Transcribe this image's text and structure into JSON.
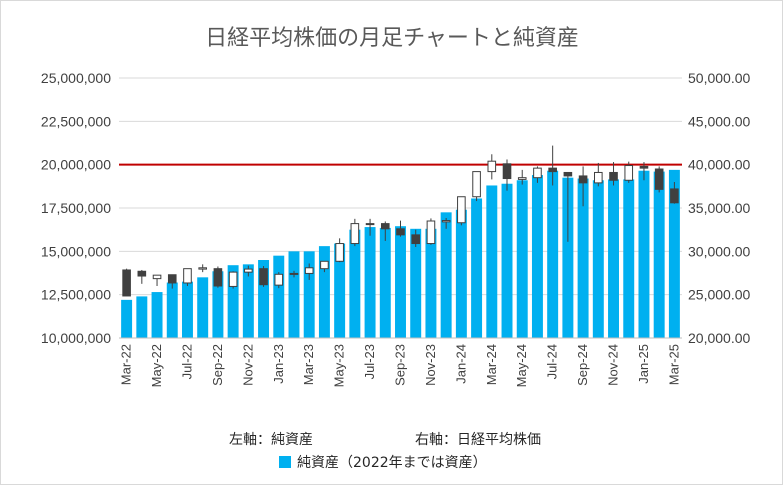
{
  "chart_data": {
    "type": "bar",
    "title": "日経平均株価の月足チャートと純資産",
    "notes": {
      "left_axis": "左軸：純資産",
      "right_axis": "右軸：日経平均株価"
    },
    "legend": {
      "position": "bottom",
      "label": "純資産（2022年までは資産）",
      "color": "#00b0f0"
    },
    "colors": {
      "bar": "#00b0f0",
      "bull": "#ffffff",
      "bear": "#404040",
      "wick": "#404040",
      "reference_line": "#c00000",
      "grid": "#d9d9d9"
    },
    "y_left": {
      "min": 10000000,
      "max": 25000000,
      "ticks": [
        10000000,
        12500000,
        15000000,
        17500000,
        20000000,
        22500000,
        25000000
      ],
      "tick_labels": [
        "10,000,000",
        "12,500,000",
        "15,000,000",
        "17,500,000",
        "20,000,000",
        "22,500,000",
        "25,000,000"
      ]
    },
    "y_right": {
      "min": 20000,
      "max": 50000,
      "ticks": [
        20000,
        25000,
        30000,
        35000,
        40000,
        45000,
        50000
      ],
      "tick_labels": [
        "20,000.00",
        "25,000.00",
        "30,000.00",
        "35,000.00",
        "40,000.00",
        "45,000.00",
        "50,000.00"
      ]
    },
    "reference_line": {
      "axis": "left",
      "value": 20000000
    },
    "categories": [
      "Mar-22",
      "Apr-22",
      "May-22",
      "Jun-22",
      "Jul-22",
      "Aug-22",
      "Sep-22",
      "Oct-22",
      "Nov-22",
      "Dec-22",
      "Jan-23",
      "Feb-23",
      "Mar-23",
      "Apr-23",
      "May-23",
      "Jun-23",
      "Jul-23",
      "Aug-23",
      "Sep-23",
      "Oct-23",
      "Nov-23",
      "Dec-23",
      "Jan-24",
      "Feb-24",
      "Mar-24",
      "Apr-24",
      "May-24",
      "Jun-24",
      "Jul-24",
      "Aug-24",
      "Sep-24",
      "Oct-24",
      "Nov-24",
      "Dec-24",
      "Jan-25",
      "Feb-25",
      "Mar-25"
    ],
    "x_tick_labels": [
      "Mar-22",
      "May-22",
      "Jul-22",
      "Sep-22",
      "Nov-22",
      "Jan-23",
      "Mar-23",
      "May-23",
      "Jul-23",
      "Sep-23",
      "Nov-23",
      "Jan-24",
      "Mar-24",
      "May-24",
      "Jul-24",
      "Sep-24",
      "Nov-24",
      "Jan-25",
      "Mar-25"
    ],
    "series": [
      {
        "name": "純資産（2022年までは資産）",
        "type": "bar",
        "axis": "left",
        "values": [
          12200000,
          12400000,
          12650000,
          13200000,
          13250000,
          13500000,
          13850000,
          14200000,
          14250000,
          14500000,
          14750000,
          15000000,
          15000000,
          15300000,
          15450000,
          16250000,
          16400000,
          16350000,
          16450000,
          16300000,
          16300000,
          17250000,
          17400000,
          18050000,
          18800000,
          18900000,
          19100000,
          19400000,
          19650000,
          19250000,
          19200000,
          19100000,
          19150000,
          19150000,
          19650000,
          19600000,
          19700000
        ]
      },
      {
        "name": "日経平均株価",
        "type": "candlestick",
        "axis": "right",
        "ohlc": [
          [
            27850,
            28000,
            25000,
            24850
          ],
          [
            27700,
            27850,
            26250,
            27150
          ],
          [
            26850,
            27150,
            26000,
            27250
          ],
          [
            27300,
            27250,
            25700,
            26350
          ],
          [
            26350,
            28000,
            26000,
            28000
          ],
          [
            27950,
            28500,
            27600,
            28100
          ],
          [
            28000,
            28250,
            25800,
            26000
          ],
          [
            25950,
            27700,
            25700,
            27600
          ],
          [
            27600,
            28350,
            27100,
            27950
          ],
          [
            28000,
            28300,
            25900,
            26150
          ],
          [
            26100,
            27600,
            25750,
            27350
          ],
          [
            27350,
            27750,
            27000,
            27450
          ],
          [
            27450,
            28600,
            26700,
            28100
          ],
          [
            28000,
            28850,
            27600,
            28850
          ],
          [
            28850,
            31500,
            28750,
            30900
          ],
          [
            30900,
            33750,
            30600,
            33200
          ],
          [
            33200,
            33750,
            31800,
            33200
          ],
          [
            33200,
            33450,
            31200,
            32600
          ],
          [
            32600,
            33550,
            31700,
            31900
          ],
          [
            31900,
            32500,
            30500,
            30900
          ],
          [
            30900,
            33800,
            30750,
            33500
          ],
          [
            33400,
            33850,
            32600,
            33550
          ],
          [
            33300,
            36250,
            33000,
            36300
          ],
          [
            36300,
            39200,
            35800,
            39200
          ],
          [
            39200,
            41200,
            38300,
            40400
          ],
          [
            40100,
            40600,
            37000,
            38400
          ],
          [
            38300,
            39400,
            37700,
            38500
          ],
          [
            38500,
            39800,
            37900,
            39600
          ],
          [
            39600,
            42200,
            37600,
            39200
          ],
          [
            39100,
            38800,
            31100,
            38700
          ],
          [
            38700,
            39800,
            35200,
            37900
          ],
          [
            37900,
            40200,
            37500,
            39100
          ],
          [
            39100,
            40300,
            37600,
            38200
          ],
          [
            38200,
            40350,
            37900,
            39900
          ],
          [
            39800,
            40300,
            38200,
            39600
          ],
          [
            39500,
            39800,
            36800,
            37150
          ],
          [
            37200,
            38000,
            35500,
            35600
          ]
        ]
      }
    ]
  }
}
